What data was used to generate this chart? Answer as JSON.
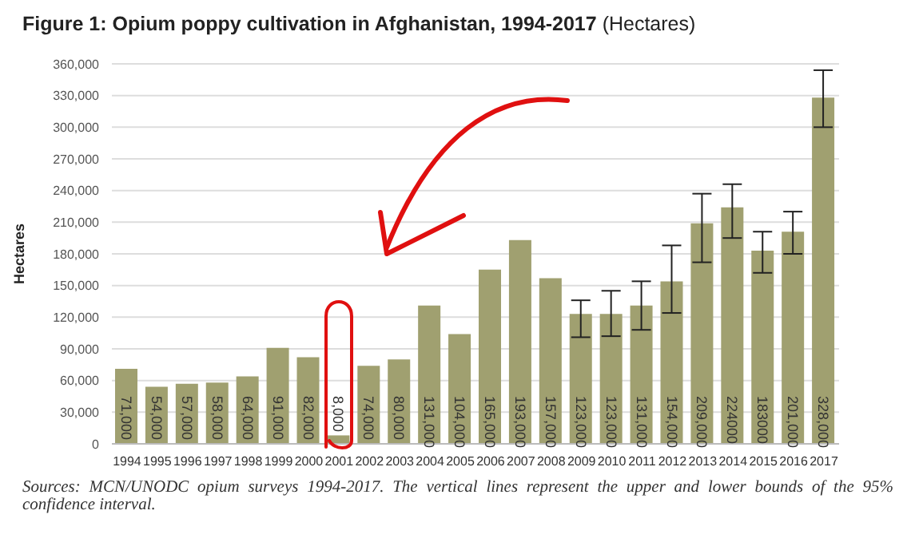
{
  "chart_data": {
    "type": "bar",
    "title": "Figure 1: Opium poppy cultivation in Afghanistan, 1994-2017",
    "subtitle": "(Hectares)",
    "ylabel": "Hectares",
    "categories": [
      "1994",
      "1995",
      "1996",
      "1997",
      "1998",
      "1999",
      "2000",
      "2001",
      "2002",
      "2003",
      "2004",
      "2005",
      "2006",
      "2007",
      "2008",
      "2009",
      "2010",
      "2011",
      "2012",
      "2013",
      "2014",
      "2015",
      "2016",
      "2017"
    ],
    "values": [
      71000,
      54000,
      57000,
      58000,
      64000,
      91000,
      82000,
      8000,
      74000,
      80000,
      131000,
      104000,
      165000,
      193000,
      157000,
      123000,
      123000,
      131000,
      154000,
      209000,
      224000,
      183000,
      201000,
      328000
    ],
    "value_labels": [
      "71,000",
      "54,000",
      "57,000",
      "58,000",
      "64,000",
      "91,000",
      "82,000",
      "8,000",
      "74,000",
      "80,000",
      "131,000",
      "104,000",
      "165,000",
      "193,000",
      "157,000",
      "123,000",
      "123,000",
      "131,000",
      "154,000",
      "209,000",
      "224000",
      "183000",
      "201,000",
      "328,000"
    ],
    "errors": [
      null,
      null,
      null,
      null,
      null,
      null,
      null,
      null,
      null,
      null,
      null,
      null,
      null,
      null,
      null,
      [
        101000,
        136000
      ],
      [
        102000,
        145000
      ],
      [
        108000,
        154000
      ],
      [
        124000,
        188000
      ],
      [
        172000,
        237000
      ],
      [
        195000,
        246000
      ],
      [
        162000,
        201000
      ],
      [
        180000,
        220000
      ],
      [
        300000,
        354000
      ]
    ],
    "color": "#a0a070",
    "ylim": [
      0,
      360000
    ],
    "yticks": [
      0,
      {
        "value": 30000,
        "label": "30,000"
      },
      {
        "value": 60000,
        "label": "60,000"
      },
      {
        "value": 90000,
        "label": "90,000"
      },
      {
        "value": 120000,
        "label": "120,000"
      },
      {
        "value": 150000,
        "label": "150,000"
      },
      {
        "value": 180000,
        "label": "180,000"
      },
      {
        "value": 210000,
        "label": "210,000"
      },
      {
        "value": 240000,
        "label": "240,000"
      },
      {
        "value": 270000,
        "label": "270,000"
      },
      {
        "value": 300000,
        "label": "300,000"
      },
      {
        "value": 330000,
        "label": "330,000"
      },
      {
        "value": 360000,
        "label": "360,000"
      }
    ],
    "grid": "y",
    "annotations": [
      "Sources: MCN/UNODC opium surveys 1994-2017. The vertical lines represent the upper and lower bounds of the 95% confidence interval."
    ]
  }
}
